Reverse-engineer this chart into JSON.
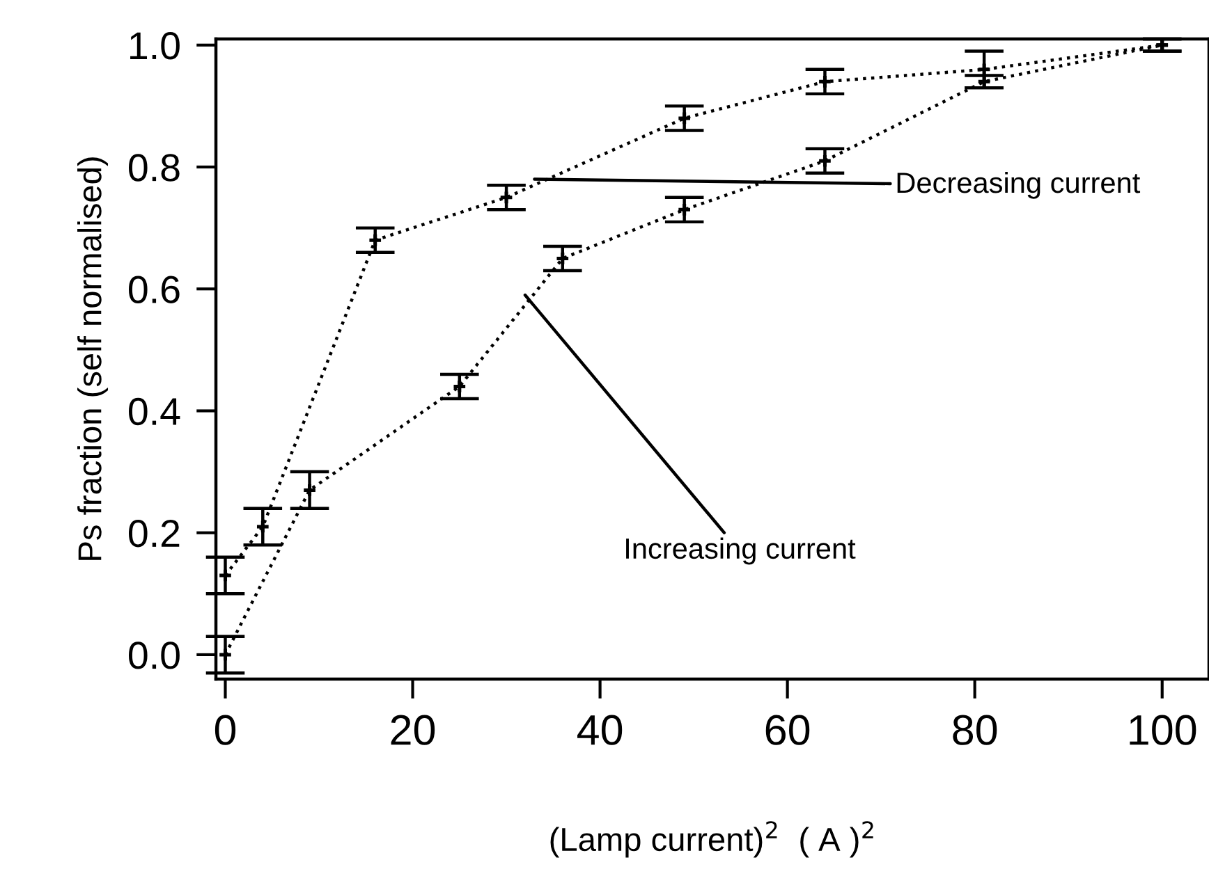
{
  "chart_data": {
    "type": "line",
    "xlabel": "(Lamp current)$^{2}$  ( A )$^{2}$",
    "ylabel": "Ps fraction (self normalised)",
    "series": [
      {
        "color": "#000000",
        "x": [
          0,
          4,
          16,
          30,
          49,
          64,
          81,
          100
        ],
        "values": [
          0.13,
          0.21,
          0.68,
          0.75,
          0.88,
          0.94,
          0.96,
          1.0
        ],
        "errors": [
          0.03,
          0.03,
          0.02,
          0.02,
          0.02,
          0.02,
          0.03,
          0.01
        ]
      },
      {
        "color": "#000000",
        "x": [
          0,
          9,
          25,
          36,
          49,
          64,
          81,
          100
        ],
        "values": [
          0.0,
          0.27,
          0.44,
          0.65,
          0.73,
          0.81,
          0.94,
          1.0
        ],
        "errors": [
          0.03,
          0.03,
          0.02,
          0.02,
          0.02,
          0.02,
          0.01,
          0.01
        ]
      }
    ],
    "annotations": [
      {
        "text": "Decreasing current",
        "x": 33,
        "y": 0.78
      },
      {
        "text": "Increasing current",
        "x": 32,
        "y": 0.59
      }
    ],
    "xlim": [
      -1,
      105
    ],
    "xticks": [
      0,
      20,
      40,
      60,
      80,
      100
    ],
    "ylim": [
      -0.04,
      1.01
    ],
    "yticks": [
      {
        "value": 0,
        "label": "0.0"
      },
      {
        "value": 0.2,
        "label": "0.2"
      },
      {
        "value": 0.4,
        "label": "0.4"
      },
      {
        "value": 0.6,
        "label": "0.6"
      },
      {
        "value": 0.8,
        "label": "0.8"
      },
      {
        "value": 1.0,
        "label": "1.0"
      }
    ],
    "marker": "cross",
    "line_style": "dotted",
    "grid": false,
    "legend": false
  }
}
